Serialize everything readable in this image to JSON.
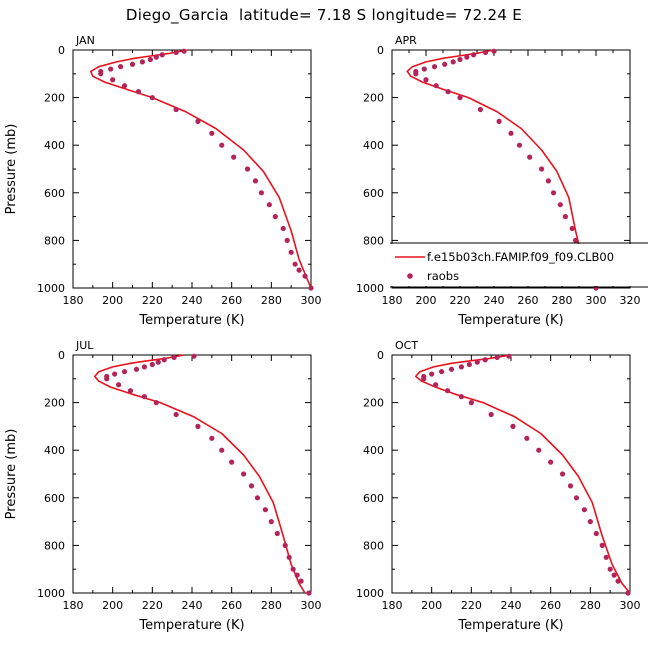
{
  "title": "Diego_Garcia  latitude= 7.18 S longitude= 72.24 E",
  "chart_data": [
    {
      "type": "line",
      "panel": "JAN",
      "xlabel": "Temperature (K)",
      "ylabel": "Pressure (mb)",
      "xlim": [
        180,
        300
      ],
      "ylim": [
        1000,
        0
      ],
      "xticks": [
        180,
        200,
        220,
        240,
        260,
        280,
        300
      ],
      "yticks": [
        0,
        200,
        400,
        600,
        800,
        1000
      ],
      "series": [
        {
          "name": "f.e15b03ch.FAMIP.f09_f09.CLB00",
          "kind": "line",
          "color": "#e8121f",
          "x": [
            238,
            228,
            219,
            211,
            202,
            193,
            189,
            190,
            196,
            207,
            220,
            237,
            252,
            266,
            276,
            284,
            290,
            294,
            298,
            300
          ],
          "y": [
            0,
            15,
            25,
            35,
            50,
            70,
            90,
            110,
            135,
            165,
            200,
            260,
            330,
            420,
            510,
            620,
            760,
            880,
            960,
            1000
          ]
        },
        {
          "name": "raobs",
          "kind": "scatter",
          "color": "#b3245a",
          "x": [
            236,
            232,
            225,
            222,
            219,
            215,
            210,
            204,
            199,
            194,
            194,
            200,
            206,
            213,
            220,
            232,
            243,
            250,
            255,
            261,
            268,
            272,
            275,
            279,
            282,
            286,
            288,
            290,
            292,
            294,
            297,
            300
          ],
          "y": [
            5,
            10,
            20,
            30,
            40,
            50,
            60,
            70,
            80,
            90,
            100,
            125,
            150,
            175,
            200,
            250,
            300,
            350,
            400,
            450,
            500,
            550,
            600,
            650,
            700,
            750,
            800,
            850,
            900,
            925,
            950,
            1000
          ]
        }
      ]
    },
    {
      "type": "line",
      "panel": "APR",
      "xlabel": "Temperature (K)",
      "ylabel": "",
      "xlim": [
        180,
        320
      ],
      "ylim": [
        1000,
        0
      ],
      "xticks": [
        180,
        200,
        220,
        240,
        260,
        280,
        300,
        320
      ],
      "yticks": [
        0,
        200,
        400,
        600,
        800,
        1000
      ],
      "legend": {
        "position": "bottom-right",
        "entries": [
          "f.e15b03ch.FAMIP.f09_f09.CLB00",
          "raobs"
        ]
      },
      "series": [
        {
          "name": "f.e15b03ch.FAMIP.f09_f09.CLB00",
          "kind": "line",
          "color": "#e8121f",
          "x": [
            240,
            229,
            219,
            210,
            200,
            192,
            189,
            191,
            198,
            210,
            225,
            242,
            256,
            268,
            277,
            284,
            288,
            292,
            296,
            300
          ],
          "y": [
            0,
            15,
            25,
            35,
            50,
            70,
            90,
            110,
            135,
            165,
            200,
            260,
            330,
            420,
            510,
            620,
            760,
            880,
            960,
            1000
          ]
        },
        {
          "name": "raobs",
          "kind": "scatter",
          "color": "#b3245a",
          "x": [
            240,
            235,
            228,
            224,
            220,
            216,
            211,
            205,
            199,
            194,
            194,
            200,
            206,
            213,
            220,
            232,
            243,
            250,
            255,
            261,
            268,
            272,
            275,
            279,
            282,
            286,
            288,
            290,
            292,
            294,
            297,
            300
          ],
          "y": [
            5,
            10,
            20,
            30,
            40,
            50,
            60,
            70,
            80,
            90,
            100,
            125,
            150,
            175,
            200,
            250,
            300,
            350,
            400,
            450,
            500,
            550,
            600,
            650,
            700,
            750,
            800,
            850,
            900,
            925,
            950,
            1000
          ]
        }
      ]
    },
    {
      "type": "line",
      "panel": "JUL",
      "xlabel": "Temperature (K)",
      "ylabel": "Pressure (mb)",
      "xlim": [
        180,
        300
      ],
      "ylim": [
        1000,
        0
      ],
      "xticks": [
        180,
        200,
        220,
        240,
        260,
        280,
        300
      ],
      "yticks": [
        0,
        200,
        400,
        600,
        800,
        1000
      ],
      "series": [
        {
          "name": "f.e15b03ch.FAMIP.f09_f09.CLB00",
          "kind": "line",
          "color": "#e8121f",
          "x": [
            236,
            226,
            217,
            209,
            200,
            193,
            191,
            193,
            199,
            210,
            224,
            241,
            255,
            266,
            274,
            281,
            286,
            290,
            294,
            297
          ],
          "y": [
            0,
            15,
            25,
            35,
            50,
            70,
            90,
            110,
            135,
            165,
            200,
            260,
            330,
            420,
            510,
            620,
            760,
            880,
            960,
            1000
          ]
        },
        {
          "name": "raobs",
          "kind": "scatter",
          "color": "#b3245a",
          "x": [
            241,
            231,
            226,
            223,
            220,
            216,
            212,
            206,
            201,
            197,
            197,
            203,
            209,
            216,
            222,
            232,
            243,
            250,
            255,
            260,
            266,
            270,
            273,
            277,
            280,
            283,
            287,
            289,
            291,
            293,
            295,
            299
          ],
          "y": [
            5,
            10,
            20,
            30,
            40,
            50,
            60,
            70,
            80,
            90,
            100,
            125,
            150,
            175,
            200,
            250,
            300,
            350,
            400,
            450,
            500,
            550,
            600,
            650,
            700,
            750,
            800,
            850,
            900,
            925,
            950,
            1000
          ]
        }
      ]
    },
    {
      "type": "line",
      "panel": "OCT",
      "xlabel": "Temperature (K)",
      "ylabel": "",
      "xlim": [
        180,
        300
      ],
      "ylim": [
        1000,
        0
      ],
      "xticks": [
        180,
        200,
        220,
        240,
        260,
        280,
        300
      ],
      "yticks": [
        0,
        200,
        400,
        600,
        800,
        1000
      ],
      "series": [
        {
          "name": "f.e15b03ch.FAMIP.f09_f09.CLB00",
          "kind": "line",
          "color": "#e8121f",
          "x": [
            240,
            229,
            219,
            210,
            201,
            194,
            192,
            195,
            202,
            212,
            226,
            242,
            255,
            266,
            274,
            281,
            286,
            291,
            296,
            300
          ],
          "y": [
            0,
            15,
            25,
            35,
            50,
            70,
            90,
            110,
            135,
            165,
            200,
            260,
            330,
            420,
            510,
            620,
            760,
            880,
            960,
            1000
          ]
        },
        {
          "name": "raobs",
          "kind": "scatter",
          "color": "#b3245a",
          "x": [
            239,
            233,
            227,
            223,
            219,
            215,
            210,
            205,
            200,
            196,
            196,
            202,
            208,
            215,
            220,
            230,
            241,
            248,
            254,
            260,
            266,
            270,
            273,
            277,
            280,
            283,
            286,
            288,
            290,
            292,
            294,
            299
          ],
          "y": [
            5,
            10,
            20,
            30,
            40,
            50,
            60,
            70,
            80,
            90,
            100,
            125,
            150,
            175,
            200,
            250,
            300,
            350,
            400,
            450,
            500,
            550,
            600,
            650,
            700,
            750,
            800,
            850,
            900,
            925,
            950,
            1000
          ]
        }
      ]
    }
  ]
}
